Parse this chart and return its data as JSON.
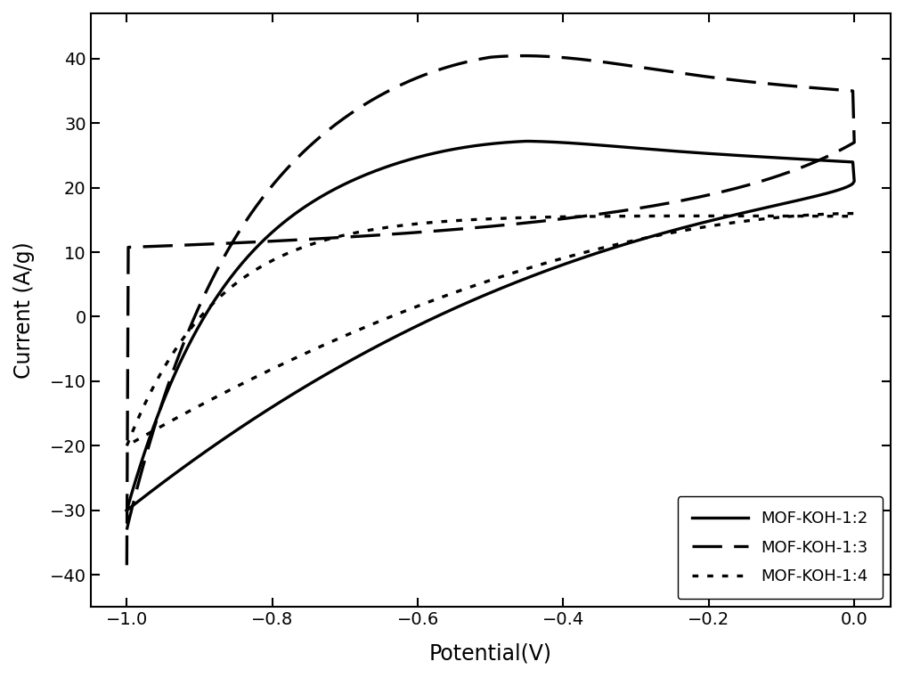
{
  "title": "",
  "xlabel": "Potential(V)",
  "ylabel": "Current (A/g)",
  "xlim": [
    -1.05,
    0.05
  ],
  "ylim": [
    -45,
    47
  ],
  "xticks": [
    -1.0,
    -0.8,
    -0.6,
    -0.4,
    -0.2,
    0.0
  ],
  "yticks": [
    -40,
    -30,
    -20,
    -10,
    0,
    10,
    20,
    30,
    40
  ],
  "background_color": "#ffffff",
  "line_color": "#000000",
  "legend_labels": [
    "MOF-KOH-1:2",
    "MOF-KOH-1:3",
    "MOF-KOH-1:4"
  ],
  "legend_loc": "lower right",
  "figsize": [
    10.15,
    7.61
  ],
  "dpi": 100
}
